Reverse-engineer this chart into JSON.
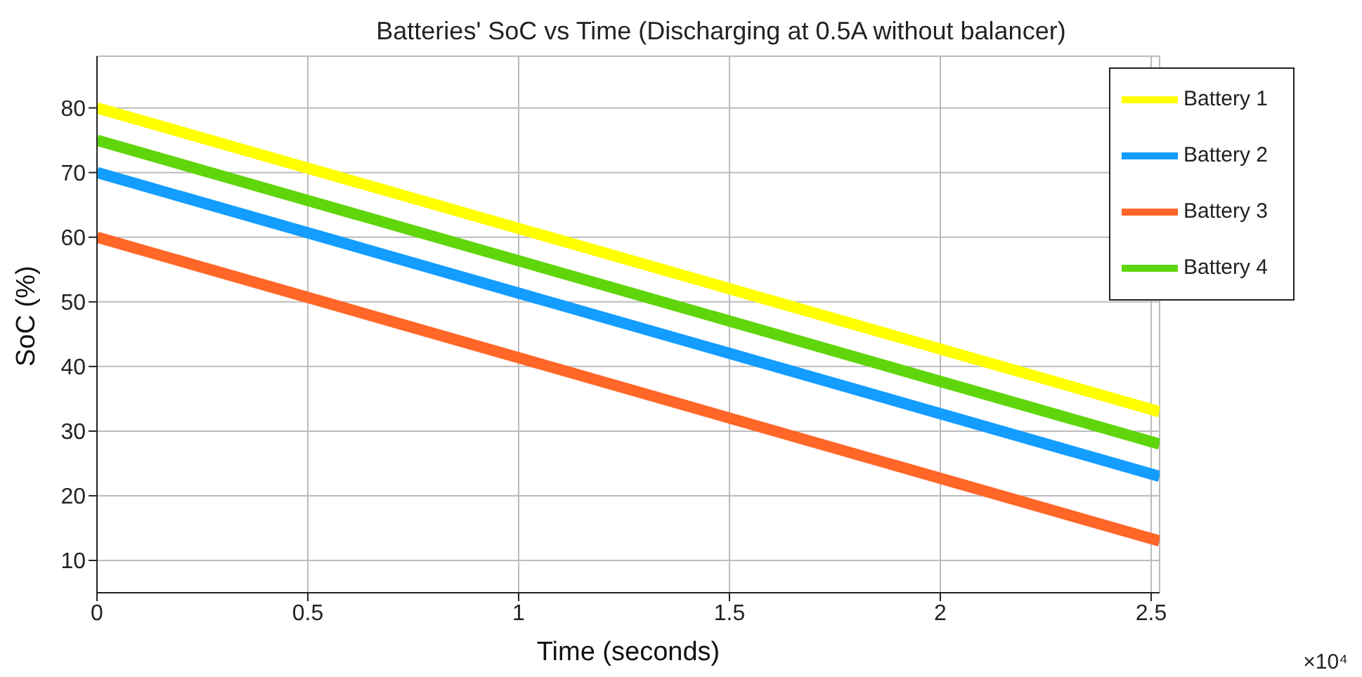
{
  "chart_data": {
    "type": "line",
    "title": "Batteries' SoC vs Time (Discharging at 0.5A without balancer)",
    "xlabel": "Time (seconds)",
    "ylabel": "SoC (%)",
    "annotations": [
      "×10⁴"
    ],
    "x": [
      0,
      2.52
    ],
    "series": [
      {
        "name": "Battery 1",
        "color": "#ffff00",
        "values": [
          80,
          33
        ]
      },
      {
        "name": "Battery 2",
        "color": "#129dff",
        "values": [
          70,
          23
        ]
      },
      {
        "name": "Battery 3",
        "color": "#ff6628",
        "values": [
          60,
          13
        ]
      },
      {
        "name": "Battery 4",
        "color": "#5fd60c",
        "values": [
          75,
          28
        ]
      }
    ],
    "xlim": [
      0,
      2.52
    ],
    "xticks": [
      0,
      0.5,
      1,
      1.5,
      2,
      2.5
    ],
    "ylim": [
      5,
      88
    ],
    "yticks": [
      10,
      20,
      30,
      40,
      50,
      60,
      70,
      80
    ],
    "grid": true,
    "legend": "top right",
    "marker": "none",
    "line_style": "solid"
  }
}
